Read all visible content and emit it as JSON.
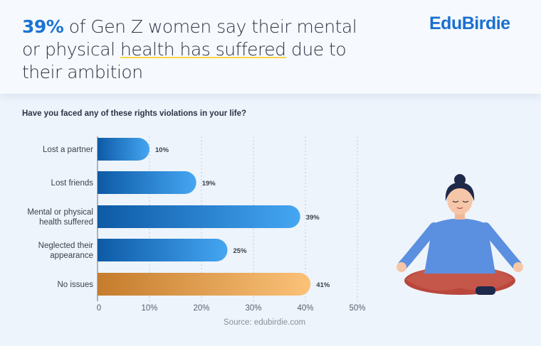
{
  "header": {
    "headline_highlight": "39%",
    "headline_part1": " of Gen Z women say their mental or physical ",
    "headline_underlined": "health has suffered",
    "headline_part2": " due to their ambition",
    "logo": "EduBirdie"
  },
  "chart_data": {
    "type": "bar",
    "orientation": "horizontal",
    "title": "Have you faced any of these rights violations in your life?",
    "categories": [
      [
        "Lost a partner"
      ],
      [
        "Lost friends"
      ],
      [
        "Mental or physical",
        "health suffered"
      ],
      [
        "Neglected their",
        "appearance"
      ],
      [
        "No issues"
      ]
    ],
    "values": [
      10,
      19,
      39,
      25,
      41
    ],
    "value_labels": [
      "10%",
      "19%",
      "39%",
      "25%",
      "41%"
    ],
    "bar_colors": [
      [
        "#0d5aa6",
        "#45a6f2"
      ],
      [
        "#0d5aa6",
        "#45a6f2"
      ],
      [
        "#0d5aa6",
        "#45a6f2"
      ],
      [
        "#0d5aa6",
        "#45a6f2"
      ],
      [
        "#c57c2c",
        "#fbc278"
      ]
    ],
    "xlim": [
      0,
      50
    ],
    "xticks": [
      "0",
      "10%",
      "20%",
      "30%",
      "40%",
      "50%"
    ],
    "grid": true,
    "source": "Source: edubirdie.com"
  }
}
